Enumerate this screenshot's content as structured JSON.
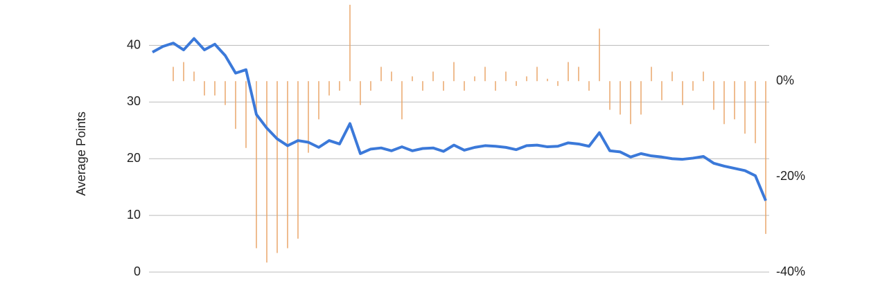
{
  "chart_data": {
    "type": "line",
    "y_label": "Average Points",
    "categories": [
      null,
      null,
      null,
      null,
      null,
      null,
      null,
      null,
      null,
      null,
      null,
      null,
      null,
      null,
      null,
      null,
      null,
      null,
      null,
      null,
      null,
      null,
      null,
      null,
      null,
      null,
      null,
      null,
      null,
      null,
      null,
      null,
      null,
      null,
      null,
      null,
      null,
      null,
      null,
      null,
      null,
      null,
      null,
      null,
      null,
      null,
      null,
      null,
      null,
      null,
      null,
      null,
      null,
      null,
      null,
      null,
      null,
      null,
      null,
      null
    ],
    "series": [
      {
        "type": "bar",
        "axis": "y2",
        "color": "#e9a66a",
        "values": [
          0,
          0,
          3,
          4,
          2,
          -3,
          -3,
          -5,
          -10,
          -14,
          -35,
          -38,
          -36,
          -35,
          -33,
          -15,
          -8,
          -3,
          -2,
          16,
          -5,
          -2,
          3,
          2,
          -8,
          1,
          -2,
          2,
          -2,
          4,
          -2,
          1,
          3,
          -2,
          2,
          -1,
          1,
          3,
          0.5,
          -1,
          4,
          3,
          -2,
          11,
          -6,
          -7,
          -9,
          -7,
          3,
          -4,
          2,
          -5,
          -2,
          2,
          -6,
          -9,
          -8,
          -11,
          -13,
          -32
        ]
      },
      {
        "type": "line",
        "color": "#3b79d9",
        "values": [
          38.8,
          39.8,
          40.4,
          39.2,
          41.2,
          39.2,
          40.2,
          38.2,
          35.1,
          35.7,
          27.8,
          25.4,
          23.5,
          22.3,
          23.2,
          22.9,
          22.0,
          23.2,
          22.6,
          26.2,
          20.9,
          21.7,
          21.9,
          21.4,
          22.1,
          21.4,
          21.8,
          21.9,
          21.3,
          22.4,
          21.5,
          22.0,
          22.3,
          22.2,
          22.0,
          21.6,
          22.3,
          22.4,
          22.1,
          22.2,
          22.8,
          22.6,
          22.2,
          24.6,
          21.4,
          21.2,
          20.3,
          20.9,
          20.5,
          20.3,
          20.0,
          19.9,
          20.1,
          20.4,
          19.2,
          18.7,
          18.3,
          17.9,
          17.0,
          12.6
        ]
      }
    ],
    "ylim": [
      0,
      48
    ],
    "yticks": [
      0,
      10,
      20,
      30,
      40
    ],
    "y2lim": [
      -40,
      17
    ],
    "y2ticks": [
      {
        "value": 0,
        "label": "0%"
      },
      {
        "value": -20,
        "label": "-20%"
      },
      {
        "value": -40,
        "label": "-40%"
      }
    ],
    "grid": true
  }
}
